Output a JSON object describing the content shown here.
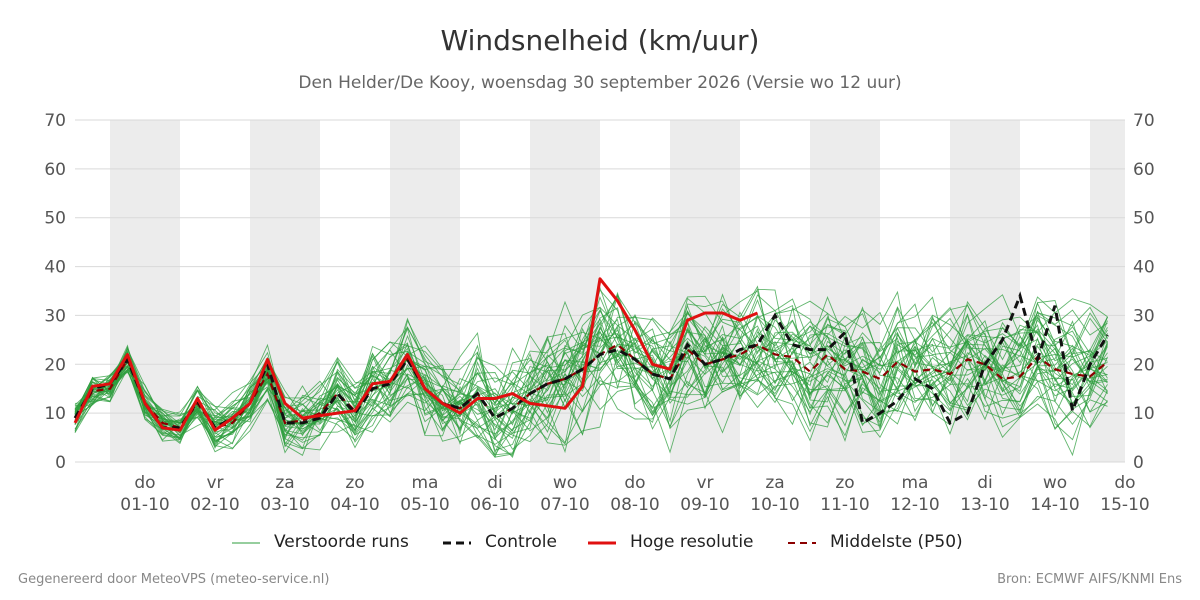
{
  "title": "Windsnelheid (km/uur)",
  "subtitle": "Den Helder/De Kooy, woensdag 30 september 2026 (Versie wo 12 uur)",
  "footer": {
    "left": "Gegenereerd door MeteoVPS (meteo-service.nl)",
    "right": "Bron: ECMWF AIFS/KNMI Ens"
  },
  "legend": [
    {
      "key": "ens",
      "label": "Verstoorde runs"
    },
    {
      "key": "ctrl",
      "label": "Controle"
    },
    {
      "key": "hres",
      "label": "Hoge resolutie"
    },
    {
      "key": "p50",
      "label": "Middelste (P50)"
    }
  ],
  "colors": {
    "ensemble": "#2e9e3e",
    "control": "#111111",
    "high_res": "#e01010",
    "median": "#8b0000",
    "grid": "#d9d9d9",
    "shade": "#ececec"
  },
  "chart_data": {
    "type": "line",
    "ylim": [
      0,
      70
    ],
    "yticks": [
      0,
      10,
      20,
      30,
      40,
      50,
      60,
      70
    ],
    "grid": true,
    "legend_position": "bottom",
    "day_labels": [
      {
        "day": "do",
        "date": "01-10"
      },
      {
        "day": "vr",
        "date": "02-10"
      },
      {
        "day": "za",
        "date": "03-10"
      },
      {
        "day": "zo",
        "date": "04-10"
      },
      {
        "day": "ma",
        "date": "05-10"
      },
      {
        "day": "di",
        "date": "06-10"
      },
      {
        "day": "wo",
        "date": "07-10"
      },
      {
        "day": "do",
        "date": "08-10"
      },
      {
        "day": "vr",
        "date": "09-10"
      },
      {
        "day": "za",
        "date": "10-10"
      },
      {
        "day": "zo",
        "date": "11-10"
      },
      {
        "day": "ma",
        "date": "12-10"
      },
      {
        "day": "di",
        "date": "13-10"
      },
      {
        "day": "wo",
        "date": "14-10"
      },
      {
        "day": "do",
        "date": "15-10"
      }
    ],
    "x_start": "2026-09-30T12:00",
    "x_end": "2026-10-15T12:00",
    "x_step_hours": 6,
    "shaded_days": [
      "2026-10-01",
      "2026-10-03",
      "2026-10-05",
      "2026-10-07",
      "2026-10-09",
      "2026-10-11",
      "2026-10-13",
      "2026-10-15"
    ],
    "high_res": [
      8,
      15.5,
      16,
      22,
      12,
      7,
      6.5,
      13,
      6.5,
      9,
      12,
      21,
      12,
      9,
      9.5,
      10,
      10.5,
      16,
      16.5,
      22,
      15,
      12,
      10,
      13,
      13,
      14,
      12,
      11.5,
      11,
      15.5,
      37.5,
      33,
      27,
      20,
      19,
      29,
      30.5,
      30.5,
      29,
      30.5
    ],
    "control": [
      9,
      15,
      16,
      21,
      12,
      7,
      7,
      12.5,
      7,
      9,
      12,
      20,
      8,
      8,
      9,
      14,
      10,
      15,
      16,
      21,
      15,
      12,
      11,
      14,
      9,
      11,
      14,
      16,
      17,
      19,
      22,
      23,
      21,
      18,
      17,
      24,
      20,
      21,
      23,
      24,
      30,
      24,
      23,
      23,
      26.5,
      8,
      10,
      12.5,
      17,
      15,
      8,
      10,
      20,
      25,
      34,
      21,
      32,
      10.5,
      20,
      26
    ],
    "median": [
      9,
      14.5,
      15,
      21,
      12,
      8,
      7,
      12,
      7,
      8,
      12,
      18,
      8,
      8.5,
      10,
      14,
      10.5,
      15,
      16,
      21,
      15,
      12,
      11,
      14,
      9,
      11,
      14,
      16,
      17,
      19,
      22,
      24,
      21,
      18,
      17,
      23,
      20,
      21,
      22,
      24,
      22,
      21.5,
      18.5,
      22,
      19,
      18.5,
      17,
      20.5,
      18.5,
      19,
      18,
      21,
      20,
      17,
      17.5,
      21.5,
      19,
      18,
      17.5,
      20.5
    ],
    "ensemble_members": 40
  }
}
